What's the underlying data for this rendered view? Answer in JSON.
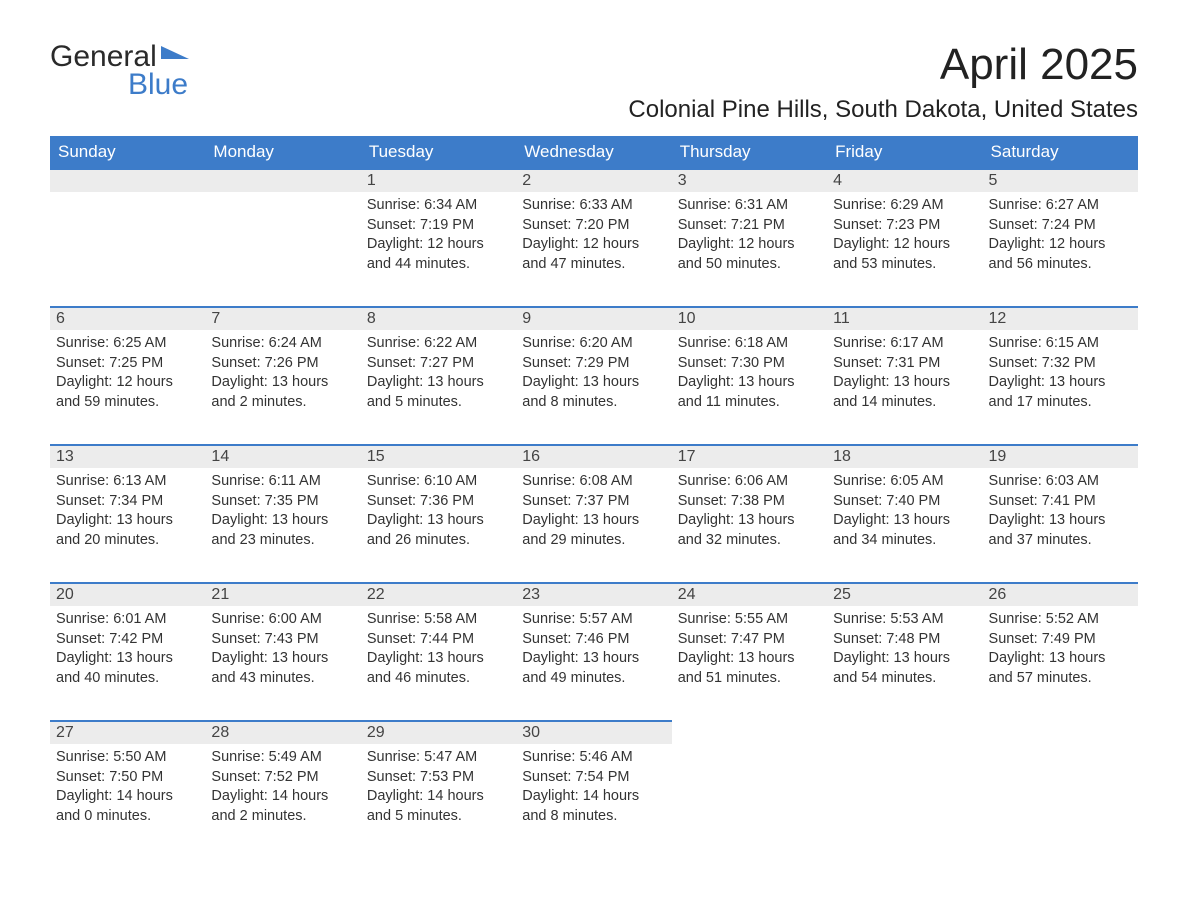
{
  "brand": {
    "word1": "General",
    "word2": "Blue",
    "brand_color": "#3d7cc9"
  },
  "title": "April 2025",
  "location": "Colonial Pine Hills, South Dakota, United States",
  "colors": {
    "header_bg": "#3d7cc9",
    "header_text": "#ffffff",
    "daynum_bg": "#ececec",
    "row_divider": "#3d7cc9",
    "body_text": "#333333",
    "page_bg": "#ffffff"
  },
  "fonts": {
    "title_pt": 44,
    "location_pt": 24,
    "dayheader_pt": 17,
    "daynum_pt": 16,
    "body_pt": 14.5
  },
  "weekdays": [
    "Sunday",
    "Monday",
    "Tuesday",
    "Wednesday",
    "Thursday",
    "Friday",
    "Saturday"
  ],
  "weeks": [
    [
      null,
      null,
      {
        "n": "1",
        "sunrise": "6:34 AM",
        "sunset": "7:19 PM",
        "daylight": "12 hours and 44 minutes."
      },
      {
        "n": "2",
        "sunrise": "6:33 AM",
        "sunset": "7:20 PM",
        "daylight": "12 hours and 47 minutes."
      },
      {
        "n": "3",
        "sunrise": "6:31 AM",
        "sunset": "7:21 PM",
        "daylight": "12 hours and 50 minutes."
      },
      {
        "n": "4",
        "sunrise": "6:29 AM",
        "sunset": "7:23 PM",
        "daylight": "12 hours and 53 minutes."
      },
      {
        "n": "5",
        "sunrise": "6:27 AM",
        "sunset": "7:24 PM",
        "daylight": "12 hours and 56 minutes."
      }
    ],
    [
      {
        "n": "6",
        "sunrise": "6:25 AM",
        "sunset": "7:25 PM",
        "daylight": "12 hours and 59 minutes."
      },
      {
        "n": "7",
        "sunrise": "6:24 AM",
        "sunset": "7:26 PM",
        "daylight": "13 hours and 2 minutes."
      },
      {
        "n": "8",
        "sunrise": "6:22 AM",
        "sunset": "7:27 PM",
        "daylight": "13 hours and 5 minutes."
      },
      {
        "n": "9",
        "sunrise": "6:20 AM",
        "sunset": "7:29 PM",
        "daylight": "13 hours and 8 minutes."
      },
      {
        "n": "10",
        "sunrise": "6:18 AM",
        "sunset": "7:30 PM",
        "daylight": "13 hours and 11 minutes."
      },
      {
        "n": "11",
        "sunrise": "6:17 AM",
        "sunset": "7:31 PM",
        "daylight": "13 hours and 14 minutes."
      },
      {
        "n": "12",
        "sunrise": "6:15 AM",
        "sunset": "7:32 PM",
        "daylight": "13 hours and 17 minutes."
      }
    ],
    [
      {
        "n": "13",
        "sunrise": "6:13 AM",
        "sunset": "7:34 PM",
        "daylight": "13 hours and 20 minutes."
      },
      {
        "n": "14",
        "sunrise": "6:11 AM",
        "sunset": "7:35 PM",
        "daylight": "13 hours and 23 minutes."
      },
      {
        "n": "15",
        "sunrise": "6:10 AM",
        "sunset": "7:36 PM",
        "daylight": "13 hours and 26 minutes."
      },
      {
        "n": "16",
        "sunrise": "6:08 AM",
        "sunset": "7:37 PM",
        "daylight": "13 hours and 29 minutes."
      },
      {
        "n": "17",
        "sunrise": "6:06 AM",
        "sunset": "7:38 PM",
        "daylight": "13 hours and 32 minutes."
      },
      {
        "n": "18",
        "sunrise": "6:05 AM",
        "sunset": "7:40 PM",
        "daylight": "13 hours and 34 minutes."
      },
      {
        "n": "19",
        "sunrise": "6:03 AM",
        "sunset": "7:41 PM",
        "daylight": "13 hours and 37 minutes."
      }
    ],
    [
      {
        "n": "20",
        "sunrise": "6:01 AM",
        "sunset": "7:42 PM",
        "daylight": "13 hours and 40 minutes."
      },
      {
        "n": "21",
        "sunrise": "6:00 AM",
        "sunset": "7:43 PM",
        "daylight": "13 hours and 43 minutes."
      },
      {
        "n": "22",
        "sunrise": "5:58 AM",
        "sunset": "7:44 PM",
        "daylight": "13 hours and 46 minutes."
      },
      {
        "n": "23",
        "sunrise": "5:57 AM",
        "sunset": "7:46 PM",
        "daylight": "13 hours and 49 minutes."
      },
      {
        "n": "24",
        "sunrise": "5:55 AM",
        "sunset": "7:47 PM",
        "daylight": "13 hours and 51 minutes."
      },
      {
        "n": "25",
        "sunrise": "5:53 AM",
        "sunset": "7:48 PM",
        "daylight": "13 hours and 54 minutes."
      },
      {
        "n": "26",
        "sunrise": "5:52 AM",
        "sunset": "7:49 PM",
        "daylight": "13 hours and 57 minutes."
      }
    ],
    [
      {
        "n": "27",
        "sunrise": "5:50 AM",
        "sunset": "7:50 PM",
        "daylight": "14 hours and 0 minutes."
      },
      {
        "n": "28",
        "sunrise": "5:49 AM",
        "sunset": "7:52 PM",
        "daylight": "14 hours and 2 minutes."
      },
      {
        "n": "29",
        "sunrise": "5:47 AM",
        "sunset": "7:53 PM",
        "daylight": "14 hours and 5 minutes."
      },
      {
        "n": "30",
        "sunrise": "5:46 AM",
        "sunset": "7:54 PM",
        "daylight": "14 hours and 8 minutes."
      },
      null,
      null,
      null
    ]
  ],
  "labels": {
    "sunrise": "Sunrise: ",
    "sunset": "Sunset: ",
    "daylight": "Daylight: "
  }
}
